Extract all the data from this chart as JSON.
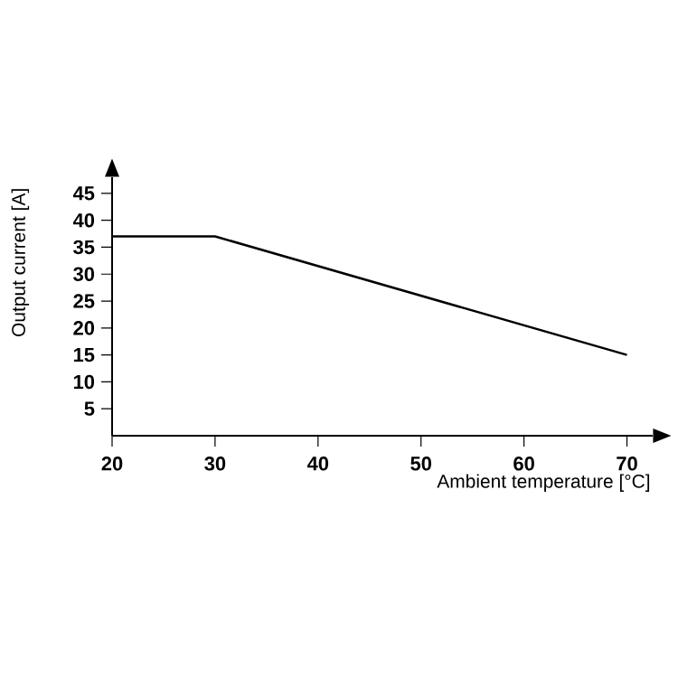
{
  "chart_data": {
    "type": "line",
    "x": [
      20,
      30,
      70
    ],
    "values": [
      37,
      37,
      15
    ],
    "color": "#000000",
    "marker": "none",
    "line_style": "solid",
    "xlabel": "Ambient temperature [°C]",
    "ylabel": "Output current [A]",
    "xlim": [
      20,
      72.5
    ],
    "ylim": [
      0,
      48
    ],
    "xticks": [
      20,
      30,
      40,
      50,
      60,
      70
    ],
    "yticks": [
      5,
      10,
      15,
      20,
      25,
      30,
      35,
      40,
      45
    ]
  }
}
